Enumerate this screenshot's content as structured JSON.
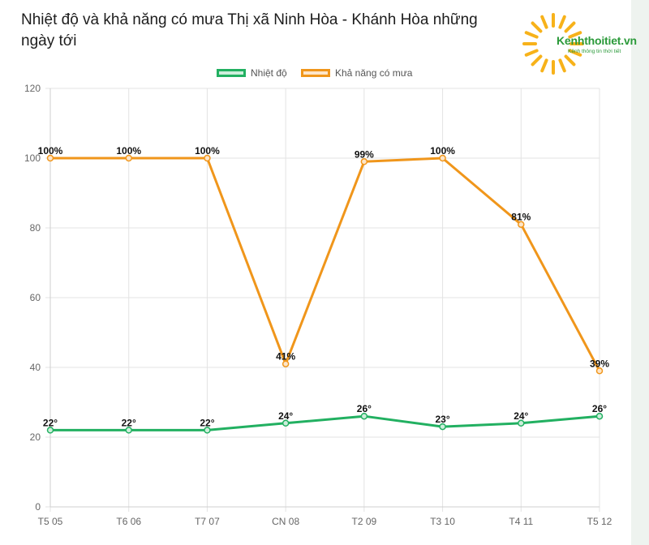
{
  "title": "Nhiệt độ và khả năng có mưa Thị xã Ninh Hòa - Khánh Hòa những ngày tới",
  "logo": {
    "name": "Kenhthoitiet.vn",
    "tagline": "Kênh thông tin thời tiết",
    "sun_color": "#f7b21a",
    "text_color": "#2b9a3a",
    "icon": "sun-icon"
  },
  "chart_data": {
    "type": "line",
    "categories": [
      "T5 05",
      "T6 06",
      "T7 07",
      "CN 08",
      "T2 09",
      "T3 10",
      "T4 11",
      "T5 12"
    ],
    "ylim": [
      0,
      120
    ],
    "yticks": [
      0,
      20,
      40,
      60,
      80,
      100,
      120
    ],
    "grid": true,
    "legend_position": "top-center",
    "series": [
      {
        "name": "Nhiệt độ",
        "values": [
          22,
          22,
          22,
          24,
          26,
          23,
          24,
          26
        ],
        "labels": [
          "22°",
          "22°",
          "22°",
          "24°",
          "26°",
          "23°",
          "24°",
          "26°"
        ],
        "color": "#22b061",
        "fill": "#cdeedb"
      },
      {
        "name": "Khả năng có mưa",
        "values": [
          100,
          100,
          100,
          41,
          99,
          100,
          81,
          39
        ],
        "labels": [
          "100%",
          "100%",
          "100%",
          "41%",
          "99%",
          "100%",
          "81%",
          "39%"
        ],
        "color": "#f0961b",
        "fill": "#fde5c8"
      }
    ]
  }
}
